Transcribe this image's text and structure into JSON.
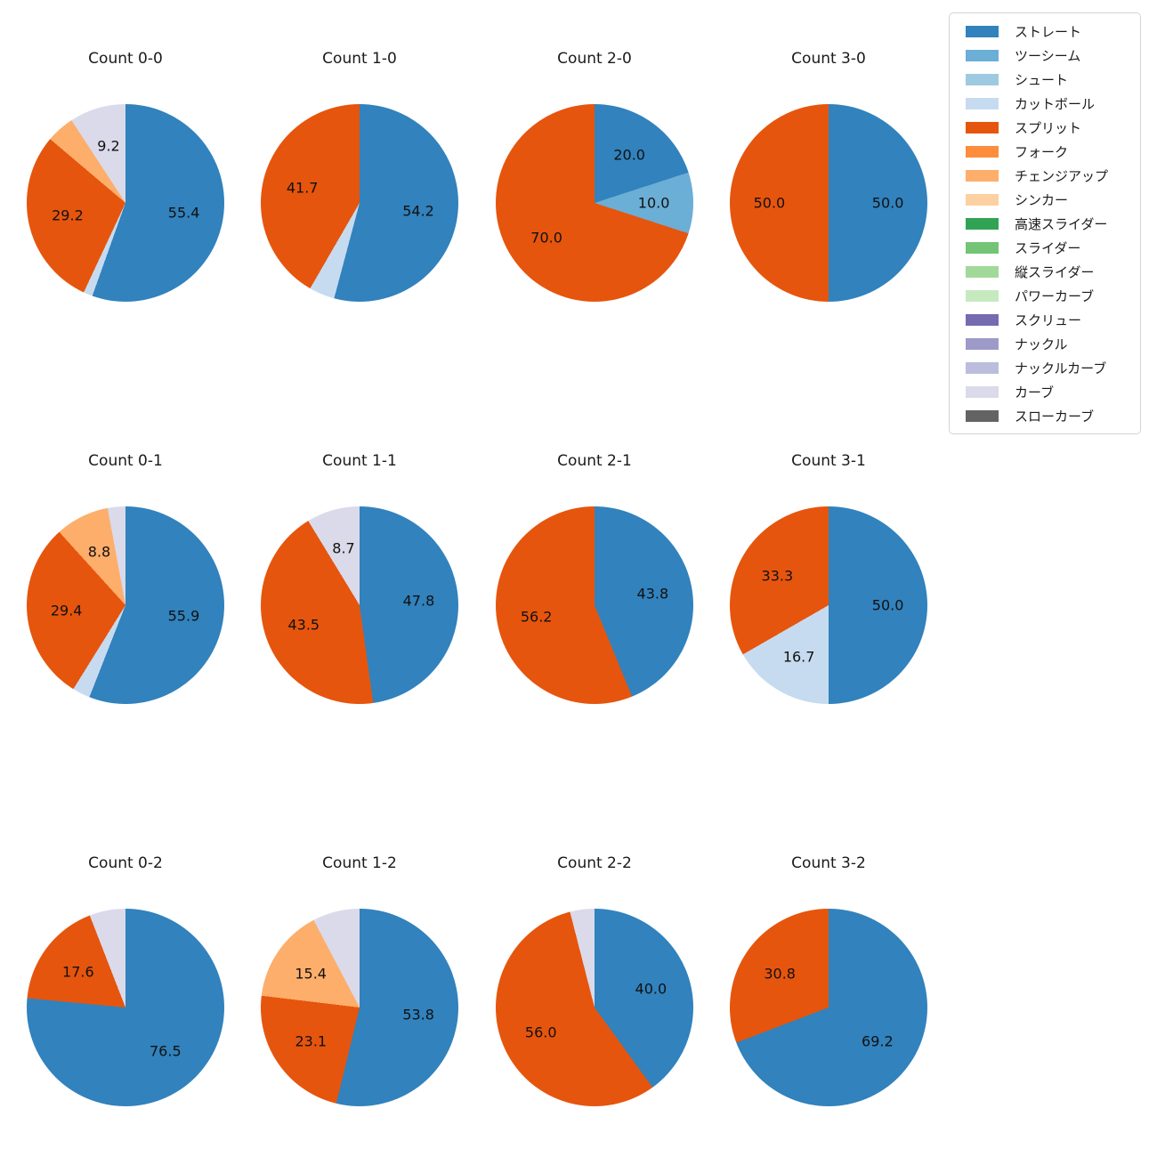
{
  "figure": {
    "background_color": "#ffffff",
    "text_color": "#1a1a1a",
    "grid": {
      "columns": 4,
      "rows": 3
    }
  },
  "legend": {
    "entries": [
      {
        "label": "ストレート",
        "color": "#3182bd"
      },
      {
        "label": "ツーシーム",
        "color": "#6baed6"
      },
      {
        "label": "シュート",
        "color": "#9ecae1"
      },
      {
        "label": "カットボール",
        "color": "#c6dbef"
      },
      {
        "label": "スプリット",
        "color": "#e6550d"
      },
      {
        "label": "フォーク",
        "color": "#fd8d3c"
      },
      {
        "label": "チェンジアップ",
        "color": "#fdae6b"
      },
      {
        "label": "シンカー",
        "color": "#fdd0a2"
      },
      {
        "label": "高速スライダー",
        "color": "#31a354"
      },
      {
        "label": "スライダー",
        "color": "#74c476"
      },
      {
        "label": "縦スライダー",
        "color": "#a1d99b"
      },
      {
        "label": "パワーカーブ",
        "color": "#c7e9c0"
      },
      {
        "label": "スクリュー",
        "color": "#756bb1"
      },
      {
        "label": "ナックル",
        "color": "#9e9ac8"
      },
      {
        "label": "ナックルカーブ",
        "color": "#bcbddc"
      },
      {
        "label": "カーブ",
        "color": "#dadaeb"
      },
      {
        "label": "スローカーブ",
        "color": "#636363"
      }
    ]
  },
  "chart_data": [
    {
      "type": "pie",
      "title": "Count 0-0",
      "start_angle_deg": 0,
      "direction": "clockwise-from-top",
      "slices": [
        {
          "pitch": "ストレート",
          "value": 55.4,
          "label": "55.4"
        },
        {
          "pitch": "カットボール",
          "value": 1.5,
          "label": ""
        },
        {
          "pitch": "スプリット",
          "value": 29.2,
          "label": "29.2"
        },
        {
          "pitch": "チェンジアップ",
          "value": 4.6,
          "label": ""
        },
        {
          "pitch": "カーブ",
          "value": 9.2,
          "label": "9.2"
        }
      ]
    },
    {
      "type": "pie",
      "title": "Count 1-0",
      "start_angle_deg": 0,
      "direction": "clockwise-from-top",
      "slices": [
        {
          "pitch": "ストレート",
          "value": 54.2,
          "label": "54.2"
        },
        {
          "pitch": "カットボール",
          "value": 4.2,
          "label": ""
        },
        {
          "pitch": "スプリット",
          "value": 41.7,
          "label": "41.7"
        }
      ]
    },
    {
      "type": "pie",
      "title": "Count 2-0",
      "start_angle_deg": 0,
      "direction": "clockwise-from-top",
      "slices": [
        {
          "pitch": "ストレート",
          "value": 20.0,
          "label": "20.0"
        },
        {
          "pitch": "ツーシーム",
          "value": 10.0,
          "label": "10.0"
        },
        {
          "pitch": "スプリット",
          "value": 70.0,
          "label": "70.0"
        }
      ]
    },
    {
      "type": "pie",
      "title": "Count 3-0",
      "start_angle_deg": 0,
      "direction": "clockwise-from-top",
      "slices": [
        {
          "pitch": "ストレート",
          "value": 50.0,
          "label": "50.0"
        },
        {
          "pitch": "スプリット",
          "value": 50.0,
          "label": "50.0"
        }
      ]
    },
    {
      "type": "pie",
      "title": "Count 0-1",
      "start_angle_deg": 0,
      "direction": "clockwise-from-top",
      "slices": [
        {
          "pitch": "ストレート",
          "value": 55.9,
          "label": "55.9"
        },
        {
          "pitch": "カットボール",
          "value": 2.9,
          "label": ""
        },
        {
          "pitch": "スプリット",
          "value": 29.4,
          "label": "29.4"
        },
        {
          "pitch": "チェンジアップ",
          "value": 8.8,
          "label": "8.8"
        },
        {
          "pitch": "カーブ",
          "value": 2.9,
          "label": ""
        }
      ]
    },
    {
      "type": "pie",
      "title": "Count 1-1",
      "start_angle_deg": 0,
      "direction": "clockwise-from-top",
      "slices": [
        {
          "pitch": "ストレート",
          "value": 47.8,
          "label": "47.8"
        },
        {
          "pitch": "スプリット",
          "value": 43.5,
          "label": "43.5"
        },
        {
          "pitch": "カーブ",
          "value": 8.7,
          "label": "8.7"
        }
      ]
    },
    {
      "type": "pie",
      "title": "Count 2-1",
      "start_angle_deg": 0,
      "direction": "clockwise-from-top",
      "slices": [
        {
          "pitch": "ストレート",
          "value": 43.8,
          "label": "43.8"
        },
        {
          "pitch": "スプリット",
          "value": 56.2,
          "label": "56.2"
        }
      ]
    },
    {
      "type": "pie",
      "title": "Count 3-1",
      "start_angle_deg": 0,
      "direction": "clockwise-from-top",
      "slices": [
        {
          "pitch": "ストレート",
          "value": 50.0,
          "label": "50.0"
        },
        {
          "pitch": "カットボール",
          "value": 16.7,
          "label": "16.7"
        },
        {
          "pitch": "スプリット",
          "value": 33.3,
          "label": "33.3"
        }
      ]
    },
    {
      "type": "pie",
      "title": "Count 0-2",
      "start_angle_deg": 0,
      "direction": "clockwise-from-top",
      "slices": [
        {
          "pitch": "ストレート",
          "value": 76.5,
          "label": "76.5"
        },
        {
          "pitch": "スプリット",
          "value": 17.6,
          "label": "17.6"
        },
        {
          "pitch": "カーブ",
          "value": 5.9,
          "label": ""
        }
      ]
    },
    {
      "type": "pie",
      "title": "Count 1-2",
      "start_angle_deg": 0,
      "direction": "clockwise-from-top",
      "slices": [
        {
          "pitch": "ストレート",
          "value": 53.8,
          "label": "53.8"
        },
        {
          "pitch": "スプリット",
          "value": 23.1,
          "label": "23.1"
        },
        {
          "pitch": "チェンジアップ",
          "value": 15.4,
          "label": "15.4"
        },
        {
          "pitch": "カーブ",
          "value": 7.7,
          "label": ""
        }
      ]
    },
    {
      "type": "pie",
      "title": "Count 2-2",
      "start_angle_deg": 0,
      "direction": "clockwise-from-top",
      "slices": [
        {
          "pitch": "ストレート",
          "value": 40.0,
          "label": "40.0"
        },
        {
          "pitch": "スプリット",
          "value": 56.0,
          "label": "56.0"
        },
        {
          "pitch": "カーブ",
          "value": 4.0,
          "label": ""
        }
      ]
    },
    {
      "type": "pie",
      "title": "Count 3-2",
      "start_angle_deg": 0,
      "direction": "clockwise-from-top",
      "slices": [
        {
          "pitch": "ストレート",
          "value": 69.2,
          "label": "69.2"
        },
        {
          "pitch": "スプリット",
          "value": 30.8,
          "label": "30.8"
        }
      ]
    }
  ]
}
